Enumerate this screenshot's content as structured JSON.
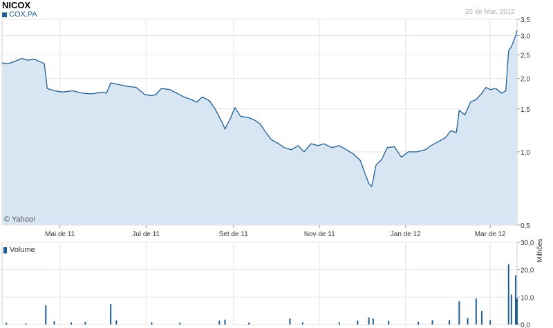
{
  "header": {
    "title": "NICOX",
    "ticker": "COX.PA",
    "date": "20 de Mar, 2012",
    "watermark": "© Yahoo!"
  },
  "volume_panel": {
    "legend": "Volume",
    "unit": "Milhões"
  },
  "colors": {
    "line": "#1f5d94",
    "fill": "#d7e6f2",
    "grid": "#e4e4e4"
  },
  "chart_data": [
    {
      "type": "area",
      "title": "NICOX",
      "series_name": "COX.PA",
      "scale": "log",
      "ylim": [
        0.5,
        3.5
      ],
      "y_ticks": [
        "0,5",
        "1,0",
        "1,5",
        "2,0",
        "2,5",
        "3,0",
        "3,5"
      ],
      "y_tick_values": [
        0.5,
        1.0,
        1.5,
        2.0,
        2.5,
        3.0,
        3.5
      ],
      "x_ticks": [
        "Mai de 11",
        "Jul de 11",
        "Set de 11",
        "Nov de 11",
        "Jan de 12",
        "Mar de 12"
      ],
      "x_tick_dates": [
        "2011-05-01",
        "2011-07-01",
        "2011-09-01",
        "2011-11-01",
        "2012-01-01",
        "2012-03-01"
      ],
      "xlim": [
        "2011-03-21",
        "2012-03-20"
      ],
      "grid": true,
      "points": [
        [
          "2011-03-21",
          2.32
        ],
        [
          "2011-03-25",
          2.3
        ],
        [
          "2011-03-30",
          2.35
        ],
        [
          "2011-04-04",
          2.42
        ],
        [
          "2011-04-08",
          2.38
        ],
        [
          "2011-04-13",
          2.4
        ],
        [
          "2011-04-18",
          2.33
        ],
        [
          "2011-04-20",
          2.3
        ],
        [
          "2011-04-22",
          1.82
        ],
        [
          "2011-04-27",
          1.78
        ],
        [
          "2011-05-03",
          1.76
        ],
        [
          "2011-05-10",
          1.78
        ],
        [
          "2011-05-17",
          1.74
        ],
        [
          "2011-05-24",
          1.73
        ],
        [
          "2011-05-31",
          1.76
        ],
        [
          "2011-06-03",
          1.74
        ],
        [
          "2011-06-06",
          1.92
        ],
        [
          "2011-06-10",
          1.9
        ],
        [
          "2011-06-17",
          1.86
        ],
        [
          "2011-06-24",
          1.84
        ],
        [
          "2011-06-30",
          1.72
        ],
        [
          "2011-07-05",
          1.7
        ],
        [
          "2011-07-08",
          1.72
        ],
        [
          "2011-07-12",
          1.82
        ],
        [
          "2011-07-18",
          1.8
        ],
        [
          "2011-07-22",
          1.75
        ],
        [
          "2011-07-28",
          1.68
        ],
        [
          "2011-08-02",
          1.64
        ],
        [
          "2011-08-06",
          1.6
        ],
        [
          "2011-08-10",
          1.68
        ],
        [
          "2011-08-15",
          1.62
        ],
        [
          "2011-08-19",
          1.5
        ],
        [
          "2011-08-24",
          1.32
        ],
        [
          "2011-08-26",
          1.24
        ],
        [
          "2011-08-30",
          1.38
        ],
        [
          "2011-09-02",
          1.52
        ],
        [
          "2011-09-06",
          1.4
        ],
        [
          "2011-09-12",
          1.38
        ],
        [
          "2011-09-16",
          1.35
        ],
        [
          "2011-09-20",
          1.3
        ],
        [
          "2011-09-24",
          1.2
        ],
        [
          "2011-09-28",
          1.12
        ],
        [
          "2011-10-03",
          1.08
        ],
        [
          "2011-10-07",
          1.04
        ],
        [
          "2011-10-12",
          1.02
        ],
        [
          "2011-10-17",
          1.06
        ],
        [
          "2011-10-21",
          1.0
        ],
        [
          "2011-10-26",
          1.08
        ],
        [
          "2011-10-31",
          1.06
        ],
        [
          "2011-11-04",
          1.08
        ],
        [
          "2011-11-10",
          1.04
        ],
        [
          "2011-11-15",
          1.06
        ],
        [
          "2011-11-20",
          1.02
        ],
        [
          "2011-11-25",
          0.98
        ],
        [
          "2011-11-30",
          0.92
        ],
        [
          "2011-12-03",
          0.82
        ],
        [
          "2011-12-06",
          0.74
        ],
        [
          "2011-12-08",
          0.72
        ],
        [
          "2011-12-11",
          0.88
        ],
        [
          "2011-12-15",
          0.93
        ],
        [
          "2011-12-19",
          1.04
        ],
        [
          "2011-12-24",
          1.05
        ],
        [
          "2011-12-29",
          0.95
        ],
        [
          "2012-01-03",
          1.0
        ],
        [
          "2012-01-09",
          1.0
        ],
        [
          "2012-01-15",
          1.02
        ],
        [
          "2012-01-19",
          1.06
        ],
        [
          "2012-01-24",
          1.1
        ],
        [
          "2012-01-29",
          1.14
        ],
        [
          "2012-02-02",
          1.22
        ],
        [
          "2012-02-06",
          1.2
        ],
        [
          "2012-02-08",
          1.48
        ],
        [
          "2012-02-12",
          1.42
        ],
        [
          "2012-02-16",
          1.6
        ],
        [
          "2012-02-20",
          1.64
        ],
        [
          "2012-02-24",
          1.74
        ],
        [
          "2012-02-27",
          1.84
        ],
        [
          "2012-03-01",
          1.8
        ],
        [
          "2012-03-05",
          1.82
        ],
        [
          "2012-03-09",
          1.74
        ],
        [
          "2012-03-12",
          1.78
        ],
        [
          "2012-03-14",
          2.6
        ],
        [
          "2012-03-16",
          2.7
        ],
        [
          "2012-03-19",
          3.0
        ],
        [
          "2012-03-20",
          3.15
        ]
      ]
    },
    {
      "type": "bar",
      "title": "Volume",
      "ylabel": "Milhões",
      "ylim": [
        0,
        30
      ],
      "y_ticks": [
        "0,0",
        "10,0",
        "20,0",
        "30,0"
      ],
      "y_tick_values": [
        0,
        10,
        20,
        30
      ],
      "points": [
        [
          "2011-03-24",
          0.6
        ],
        [
          "2011-04-07",
          0.4
        ],
        [
          "2011-04-21",
          7.0
        ],
        [
          "2011-04-27",
          1.2
        ],
        [
          "2011-05-09",
          0.8
        ],
        [
          "2011-05-19",
          1.0
        ],
        [
          "2011-06-06",
          7.5
        ],
        [
          "2011-06-10",
          1.5
        ],
        [
          "2011-07-05",
          0.8
        ],
        [
          "2011-07-25",
          0.6
        ],
        [
          "2011-08-22",
          1.4
        ],
        [
          "2011-08-26",
          1.8
        ],
        [
          "2011-09-12",
          0.7
        ],
        [
          "2011-10-11",
          2.2
        ],
        [
          "2011-10-20",
          0.8
        ],
        [
          "2011-11-15",
          0.8
        ],
        [
          "2011-11-28",
          1.4
        ],
        [
          "2011-12-06",
          2.6
        ],
        [
          "2011-12-09",
          2.2
        ],
        [
          "2011-12-20",
          1.3
        ],
        [
          "2012-01-10",
          1.0
        ],
        [
          "2012-01-20",
          1.6
        ],
        [
          "2012-02-01",
          1.6
        ],
        [
          "2012-02-08",
          8.5
        ],
        [
          "2012-02-14",
          2.4
        ],
        [
          "2012-02-20",
          9.5
        ],
        [
          "2012-02-24",
          5.0
        ],
        [
          "2012-03-01",
          1.6
        ],
        [
          "2012-03-14",
          22.0
        ],
        [
          "2012-03-16",
          11.0
        ],
        [
          "2012-03-19",
          18.0
        ],
        [
          "2012-03-20",
          9.5
        ]
      ]
    }
  ]
}
